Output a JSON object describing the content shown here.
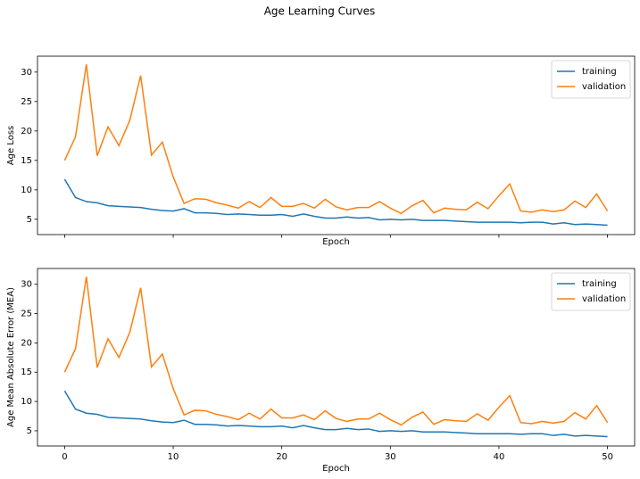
{
  "title": "Age Learning Curves",
  "chart_data": [
    {
      "type": "line",
      "ylabel": "Age Loss",
      "xlabel": "Epoch",
      "x": [
        0,
        1,
        2,
        3,
        4,
        5,
        6,
        7,
        8,
        9,
        10,
        11,
        12,
        13,
        14,
        15,
        16,
        17,
        18,
        19,
        20,
        21,
        22,
        23,
        24,
        25,
        26,
        27,
        28,
        29,
        30,
        31,
        32,
        33,
        34,
        35,
        36,
        37,
        38,
        39,
        40,
        41,
        42,
        43,
        44,
        45,
        46,
        47,
        48,
        49,
        50
      ],
      "series": [
        {
          "name": "training",
          "color": "#1f77b4",
          "values": [
            11.8,
            8.7,
            8.0,
            7.8,
            7.3,
            7.2,
            7.1,
            7.0,
            6.7,
            6.5,
            6.4,
            6.8,
            6.1,
            6.1,
            6.0,
            5.8,
            5.9,
            5.8,
            5.7,
            5.7,
            5.8,
            5.5,
            5.9,
            5.5,
            5.2,
            5.2,
            5.4,
            5.2,
            5.3,
            4.9,
            5.0,
            4.9,
            5.0,
            4.8,
            4.8,
            4.8,
            4.7,
            4.6,
            4.5,
            4.5,
            4.5,
            4.5,
            4.4,
            4.5,
            4.5,
            4.2,
            4.4,
            4.1,
            4.2,
            4.1,
            4.0
          ]
        },
        {
          "name": "validation",
          "color": "#ff7f0e",
          "values": [
            15.0,
            19.0,
            31.3,
            15.8,
            20.7,
            17.5,
            21.8,
            29.4,
            15.9,
            18.1,
            12.2,
            7.7,
            8.5,
            8.4,
            7.8,
            7.4,
            6.9,
            8.0,
            7.0,
            8.7,
            7.2,
            7.2,
            7.7,
            6.9,
            8.4,
            7.1,
            6.6,
            7.0,
            7.0,
            8.0,
            6.9,
            6.0,
            7.3,
            8.2,
            6.1,
            6.9,
            6.7,
            6.6,
            7.9,
            6.8,
            9.0,
            11.0,
            6.4,
            6.2,
            6.6,
            6.3,
            6.6,
            8.1,
            7.0,
            9.3,
            6.4
          ]
        }
      ],
      "xlim": [
        -2.5,
        52.5
      ],
      "xticks": [
        0,
        10,
        20,
        30,
        40,
        50
      ],
      "x_tick_labels": false,
      "ylim": [
        2.4,
        32.7
      ],
      "yticks": [
        5,
        10,
        15,
        20,
        25,
        30
      ],
      "legend": "upper right"
    },
    {
      "type": "line",
      "ylabel": "Age Mean Absolute Error (MEA)",
      "xlabel": "Epoch",
      "x": [
        0,
        1,
        2,
        3,
        4,
        5,
        6,
        7,
        8,
        9,
        10,
        11,
        12,
        13,
        14,
        15,
        16,
        17,
        18,
        19,
        20,
        21,
        22,
        23,
        24,
        25,
        26,
        27,
        28,
        29,
        30,
        31,
        32,
        33,
        34,
        35,
        36,
        37,
        38,
        39,
        40,
        41,
        42,
        43,
        44,
        45,
        46,
        47,
        48,
        49,
        50
      ],
      "series": [
        {
          "name": "training",
          "color": "#1f77b4",
          "values": [
            11.8,
            8.7,
            8.0,
            7.8,
            7.3,
            7.2,
            7.1,
            7.0,
            6.7,
            6.5,
            6.4,
            6.8,
            6.1,
            6.1,
            6.0,
            5.8,
            5.9,
            5.8,
            5.7,
            5.7,
            5.8,
            5.5,
            5.9,
            5.5,
            5.2,
            5.2,
            5.4,
            5.2,
            5.3,
            4.9,
            5.0,
            4.9,
            5.0,
            4.8,
            4.8,
            4.8,
            4.7,
            4.6,
            4.5,
            4.5,
            4.5,
            4.5,
            4.4,
            4.5,
            4.5,
            4.2,
            4.4,
            4.1,
            4.2,
            4.1,
            4.0
          ]
        },
        {
          "name": "validation",
          "color": "#ff7f0e",
          "values": [
            15.0,
            19.0,
            31.3,
            15.8,
            20.7,
            17.5,
            21.8,
            29.4,
            15.9,
            18.1,
            12.2,
            7.7,
            8.5,
            8.4,
            7.8,
            7.4,
            6.9,
            8.0,
            7.0,
            8.7,
            7.2,
            7.2,
            7.7,
            6.9,
            8.4,
            7.1,
            6.6,
            7.0,
            7.0,
            8.0,
            6.9,
            6.0,
            7.3,
            8.2,
            6.1,
            6.9,
            6.7,
            6.6,
            7.9,
            6.8,
            9.0,
            11.0,
            6.4,
            6.2,
            6.6,
            6.3,
            6.6,
            8.1,
            7.0,
            9.3,
            6.4
          ]
        }
      ],
      "xlim": [
        -2.5,
        52.5
      ],
      "xticks": [
        0,
        10,
        20,
        30,
        40,
        50
      ],
      "x_tick_labels": true,
      "ylim": [
        2.4,
        32.7
      ],
      "yticks": [
        5,
        10,
        15,
        20,
        25,
        30
      ],
      "legend": "upper right"
    }
  ]
}
